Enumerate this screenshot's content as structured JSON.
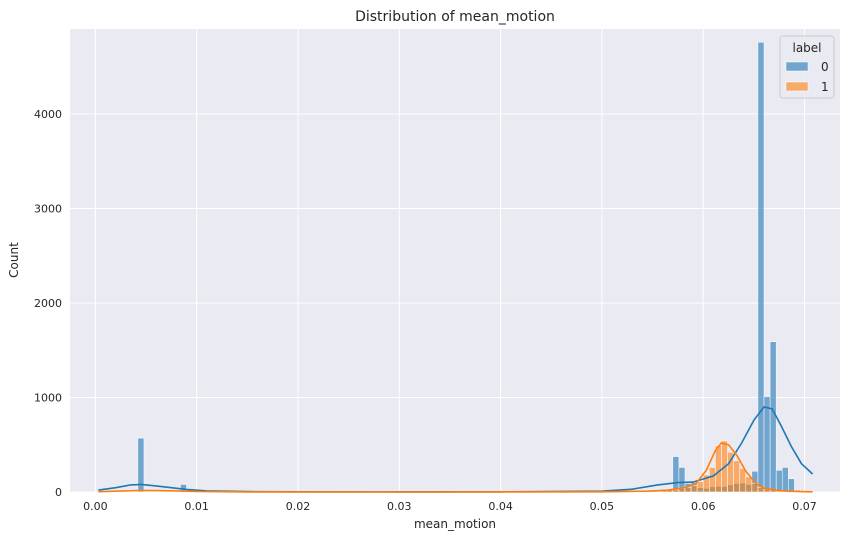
{
  "chart_data": {
    "type": "bar",
    "title": "Distribution of mean_motion",
    "xlabel": "mean_motion",
    "ylabel": "Count",
    "xlim": [
      -0.0025,
      0.0735
    ],
    "ylim": [
      0,
      4900
    ],
    "xticks": [
      0.0,
      0.01,
      0.02,
      0.03,
      0.04,
      0.05,
      0.06,
      0.07
    ],
    "xtick_labels": [
      "0.00",
      "0.01",
      "0.02",
      "0.03",
      "0.04",
      "0.05",
      "0.06",
      "0.07"
    ],
    "yticks": [
      0,
      1000,
      2000,
      3000,
      4000
    ],
    "ytick_labels": [
      "0",
      "1000",
      "2000",
      "3000",
      "4000"
    ],
    "grid": true,
    "legend": {
      "title": "label",
      "placement": "top-right",
      "entries": [
        {
          "label": "0",
          "color": "#1f77b4"
        },
        {
          "label": "1",
          "color": "#ff7f0e"
        }
      ]
    },
    "bin_width": 0.0006,
    "series": [
      {
        "name": "0",
        "color": "#1f77b4",
        "bins": [
          {
            "x": 0.0042,
            "count": 570
          },
          {
            "x": 0.0084,
            "count": 80
          },
          {
            "x": 0.0546,
            "count": 15
          },
          {
            "x": 0.0552,
            "count": 25
          },
          {
            "x": 0.0558,
            "count": 30
          },
          {
            "x": 0.0564,
            "count": 25
          },
          {
            "x": 0.057,
            "count": 375
          },
          {
            "x": 0.0576,
            "count": 260
          },
          {
            "x": 0.0582,
            "count": 90
          },
          {
            "x": 0.0588,
            "count": 100
          },
          {
            "x": 0.0594,
            "count": 45
          },
          {
            "x": 0.06,
            "count": 40
          },
          {
            "x": 0.0606,
            "count": 55
          },
          {
            "x": 0.0612,
            "count": 60
          },
          {
            "x": 0.0618,
            "count": 60
          },
          {
            "x": 0.0624,
            "count": 75
          },
          {
            "x": 0.063,
            "count": 90
          },
          {
            "x": 0.0636,
            "count": 95
          },
          {
            "x": 0.0642,
            "count": 80
          },
          {
            "x": 0.0648,
            "count": 220
          },
          {
            "x": 0.0654,
            "count": 4760
          },
          {
            "x": 0.066,
            "count": 1010
          },
          {
            "x": 0.0666,
            "count": 1590
          },
          {
            "x": 0.0672,
            "count": 230
          },
          {
            "x": 0.0678,
            "count": 260
          },
          {
            "x": 0.0684,
            "count": 140
          },
          {
            "x": 0.069,
            "count": 20
          }
        ]
      },
      {
        "name": "1",
        "color": "#ff7f0e",
        "bins": [
          {
            "x": 0.0042,
            "count": 10
          },
          {
            "x": 0.0084,
            "count": 15
          },
          {
            "x": 0.0546,
            "count": 8
          },
          {
            "x": 0.0552,
            "count": 10
          },
          {
            "x": 0.0558,
            "count": 15
          },
          {
            "x": 0.0564,
            "count": 18
          },
          {
            "x": 0.057,
            "count": 22
          },
          {
            "x": 0.0576,
            "count": 35
          },
          {
            "x": 0.0582,
            "count": 50
          },
          {
            "x": 0.0588,
            "count": 70
          },
          {
            "x": 0.0594,
            "count": 110
          },
          {
            "x": 0.06,
            "count": 180
          },
          {
            "x": 0.0606,
            "count": 260
          },
          {
            "x": 0.0612,
            "count": 490
          },
          {
            "x": 0.0618,
            "count": 540
          },
          {
            "x": 0.0624,
            "count": 420
          },
          {
            "x": 0.063,
            "count": 330
          },
          {
            "x": 0.0636,
            "count": 250
          },
          {
            "x": 0.0642,
            "count": 160
          },
          {
            "x": 0.0648,
            "count": 90
          },
          {
            "x": 0.0654,
            "count": 50
          },
          {
            "x": 0.066,
            "count": 30
          },
          {
            "x": 0.0666,
            "count": 20
          },
          {
            "x": 0.0672,
            "count": 12
          },
          {
            "x": 0.0678,
            "count": 8
          },
          {
            "x": 0.0684,
            "count": 5
          },
          {
            "x": 0.069,
            "count": 4
          },
          {
            "x": 0.0696,
            "count": 3
          },
          {
            "x": 0.0702,
            "count": 2
          }
        ]
      }
    ],
    "kde": [
      {
        "name": "0",
        "color": "#1f77b4",
        "points": [
          [
            0.0003,
            20
          ],
          [
            0.002,
            45
          ],
          [
            0.0035,
            75
          ],
          [
            0.0045,
            80
          ],
          [
            0.006,
            65
          ],
          [
            0.0075,
            45
          ],
          [
            0.009,
            28
          ],
          [
            0.011,
            12
          ],
          [
            0.015,
            4
          ],
          [
            0.02,
            2
          ],
          [
            0.03,
            1
          ],
          [
            0.04,
            2
          ],
          [
            0.05,
            8
          ],
          [
            0.053,
            30
          ],
          [
            0.0555,
            75
          ],
          [
            0.0575,
            100
          ],
          [
            0.059,
            105
          ],
          [
            0.061,
            170
          ],
          [
            0.0625,
            300
          ],
          [
            0.0638,
            520
          ],
          [
            0.065,
            760
          ],
          [
            0.066,
            900
          ],
          [
            0.0668,
            880
          ],
          [
            0.0677,
            700
          ],
          [
            0.0687,
            480
          ],
          [
            0.0697,
            300
          ],
          [
            0.0708,
            190
          ]
        ]
      },
      {
        "name": "1",
        "color": "#ff7f0e",
        "points": [
          [
            0.0003,
            3
          ],
          [
            0.002,
            8
          ],
          [
            0.004,
            15
          ],
          [
            0.006,
            15
          ],
          [
            0.008,
            12
          ],
          [
            0.01,
            5
          ],
          [
            0.015,
            1
          ],
          [
            0.03,
            0
          ],
          [
            0.05,
            2
          ],
          [
            0.0545,
            8
          ],
          [
            0.0565,
            20
          ],
          [
            0.058,
            40
          ],
          [
            0.0593,
            90
          ],
          [
            0.0603,
            230
          ],
          [
            0.0612,
            440
          ],
          [
            0.0618,
            520
          ],
          [
            0.0625,
            500
          ],
          [
            0.0633,
            390
          ],
          [
            0.0642,
            220
          ],
          [
            0.0652,
            90
          ],
          [
            0.066,
            40
          ],
          [
            0.0672,
            18
          ],
          [
            0.0685,
            8
          ],
          [
            0.07,
            3
          ],
          [
            0.0708,
            2
          ]
        ]
      }
    ]
  }
}
